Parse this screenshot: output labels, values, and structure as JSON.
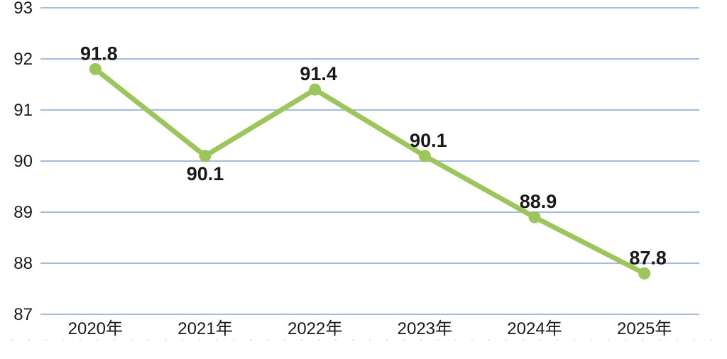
{
  "chart": {
    "background_color": "#ffffff"
  },
  "chart_data": {
    "type": "line",
    "title": "",
    "xlabel": "",
    "ylabel": "",
    "categories": [
      "2020年",
      "2021年",
      "2022年",
      "2023年",
      "2024年",
      "2025年"
    ],
    "series": [
      {
        "name": "series-1",
        "values": [
          91.8,
          90.1,
          91.4,
          90.1,
          88.9,
          87.8
        ],
        "data_labels": [
          "91.8",
          "90.1",
          "91.4",
          "90.1",
          "88.9",
          "87.8"
        ],
        "label_positions": [
          "above",
          "below",
          "above",
          "above",
          "above",
          "above"
        ],
        "color": "#9cc65b",
        "marker": "circle"
      }
    ],
    "ylim": [
      87,
      93
    ],
    "yticks": [
      87,
      88,
      89,
      90,
      91,
      92,
      93
    ],
    "grid": "horizontal",
    "legend": "none",
    "colors": {
      "line": "#9cc65b",
      "marker": "#9cc65b",
      "gridline": "#a4bddc",
      "text": "#1a1a1a",
      "faint_divider": "#d9d9d9"
    }
  }
}
